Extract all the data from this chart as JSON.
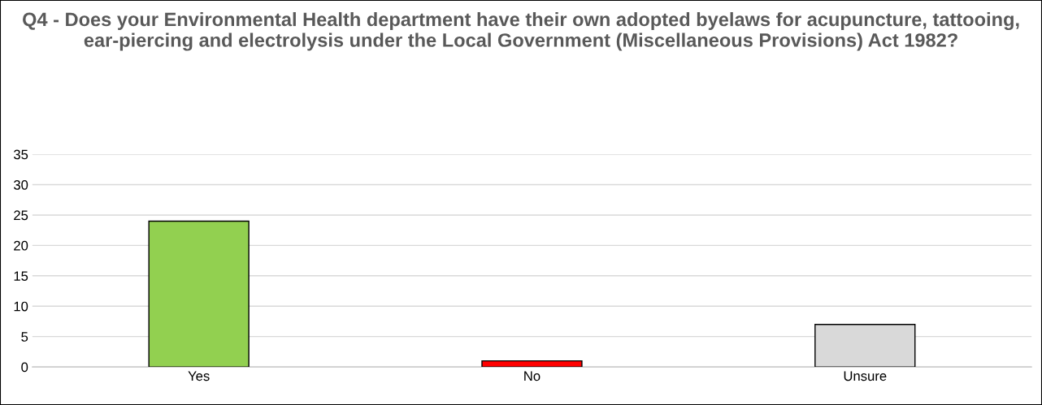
{
  "chart_data": {
    "type": "bar",
    "title": "Q4 - Does your Environmental Health department have their own adopted byelaws for acupuncture, tattooing, ear-piercing and electrolysis under the Local Government (Miscellaneous Provisions) Act 1982?",
    "categories": [
      "Yes",
      "No",
      "Unsure"
    ],
    "values": [
      24,
      1,
      7
    ],
    "colors": [
      "#92d050",
      "#ff0000",
      "#d9d9d9"
    ],
    "ylim": [
      0,
      35
    ],
    "yticks": [
      0,
      5,
      10,
      15,
      20,
      25,
      30,
      35
    ],
    "grid": "y"
  }
}
